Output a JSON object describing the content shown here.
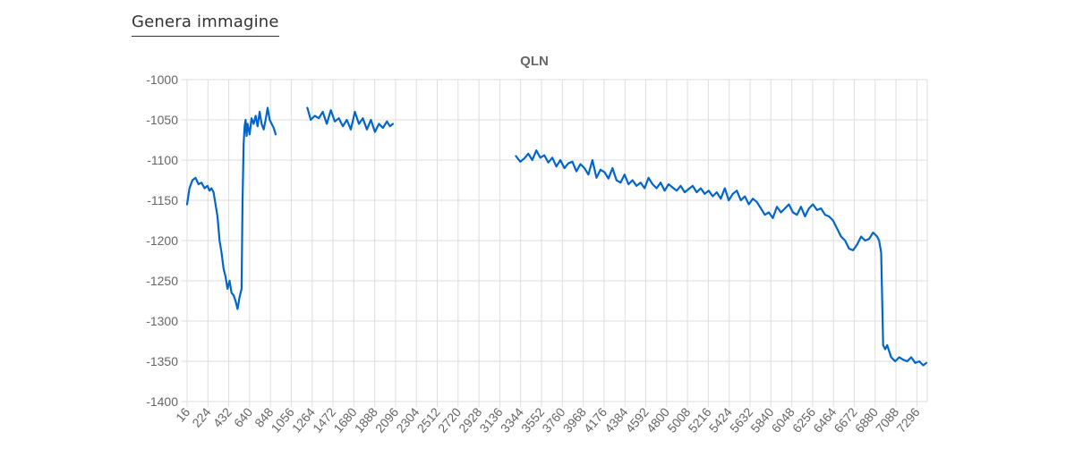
{
  "button": {
    "label": "Genera immagine"
  },
  "chart_data": {
    "type": "line",
    "title": "QLN",
    "xlabel": "",
    "ylabel": "",
    "ylim": [
      -1400,
      -1000
    ],
    "xlim": [
      16,
      7400
    ],
    "grid": true,
    "legend": "none",
    "line_color": "#0066CC",
    "y_ticks": [
      "-1000",
      "-1050",
      "-1100",
      "-1150",
      "-1200",
      "-1250",
      "-1300",
      "-1350",
      "-1400"
    ],
    "x_ticks": [
      "16",
      "224",
      "432",
      "640",
      "848",
      "1056",
      "1264",
      "1472",
      "1680",
      "1888",
      "2096",
      "2304",
      "2512",
      "2720",
      "2928",
      "3136",
      "3344",
      "3552",
      "3760",
      "3968",
      "4176",
      "4384",
      "4592",
      "4800",
      "5008",
      "5216",
      "5424",
      "5632",
      "5840",
      "6048",
      "6256",
      "6464",
      "6672",
      "6880",
      "7088",
      "7296"
    ],
    "series": [
      {
        "segments": [
          [
            [
              16,
              -1155
            ],
            [
              40,
              -1135
            ],
            [
              70,
              -1125
            ],
            [
              100,
              -1122
            ],
            [
              130,
              -1130
            ],
            [
              160,
              -1128
            ],
            [
              190,
              -1135
            ],
            [
              220,
              -1132
            ],
            [
              240,
              -1138
            ],
            [
              260,
              -1135
            ],
            [
              280,
              -1140
            ],
            [
              300,
              -1155
            ],
            [
              320,
              -1170
            ],
            [
              340,
              -1200
            ],
            [
              360,
              -1215
            ],
            [
              380,
              -1235
            ],
            [
              400,
              -1245
            ],
            [
              420,
              -1260
            ],
            [
              440,
              -1250
            ],
            [
              460,
              -1265
            ],
            [
              480,
              -1268
            ],
            [
              500,
              -1275
            ],
            [
              520,
              -1285
            ],
            [
              540,
              -1270
            ],
            [
              560,
              -1260
            ],
            [
              570,
              -1150
            ],
            [
              580,
              -1080
            ],
            [
              590,
              -1058
            ],
            [
              600,
              -1050
            ],
            [
              610,
              -1070
            ],
            [
              620,
              -1055
            ],
            [
              640,
              -1068
            ],
            [
              660,
              -1048
            ],
            [
              680,
              -1055
            ],
            [
              700,
              -1045
            ],
            [
              720,
              -1058
            ],
            [
              740,
              -1040
            ],
            [
              760,
              -1055
            ],
            [
              780,
              -1062
            ],
            [
              800,
              -1050
            ],
            [
              820,
              -1035
            ],
            [
              840,
              -1050
            ],
            [
              860,
              -1055
            ],
            [
              880,
              -1060
            ],
            [
              900,
              -1068
            ]
          ],
          [
            [
              1216,
              -1035
            ],
            [
              1250,
              -1050
            ],
            [
              1290,
              -1045
            ],
            [
              1330,
              -1048
            ],
            [
              1370,
              -1040
            ],
            [
              1410,
              -1055
            ],
            [
              1450,
              -1038
            ],
            [
              1490,
              -1052
            ],
            [
              1530,
              -1048
            ],
            [
              1570,
              -1058
            ],
            [
              1610,
              -1050
            ],
            [
              1650,
              -1062
            ],
            [
              1690,
              -1040
            ],
            [
              1730,
              -1055
            ],
            [
              1770,
              -1048
            ],
            [
              1810,
              -1062
            ],
            [
              1850,
              -1050
            ],
            [
              1890,
              -1065
            ],
            [
              1930,
              -1055
            ],
            [
              1970,
              -1060
            ],
            [
              2010,
              -1052
            ],
            [
              2040,
              -1058
            ],
            [
              2070,
              -1055
            ]
          ],
          [
            [
              3296,
              -1095
            ],
            [
              3340,
              -1102
            ],
            [
              3380,
              -1098
            ],
            [
              3420,
              -1092
            ],
            [
              3460,
              -1100
            ],
            [
              3500,
              -1088
            ],
            [
              3540,
              -1097
            ],
            [
              3580,
              -1094
            ],
            [
              3620,
              -1103
            ],
            [
              3660,
              -1097
            ],
            [
              3700,
              -1108
            ],
            [
              3740,
              -1100
            ],
            [
              3780,
              -1110
            ],
            [
              3820,
              -1104
            ],
            [
              3860,
              -1102
            ],
            [
              3900,
              -1114
            ],
            [
              3940,
              -1105
            ],
            [
              3980,
              -1110
            ],
            [
              4020,
              -1118
            ],
            [
              4060,
              -1100
            ],
            [
              4100,
              -1122
            ],
            [
              4140,
              -1112
            ],
            [
              4180,
              -1115
            ],
            [
              4220,
              -1123
            ],
            [
              4260,
              -1110
            ],
            [
              4300,
              -1125
            ],
            [
              4340,
              -1128
            ],
            [
              4380,
              -1118
            ],
            [
              4420,
              -1130
            ],
            [
              4460,
              -1125
            ],
            [
              4500,
              -1132
            ],
            [
              4540,
              -1128
            ],
            [
              4580,
              -1135
            ],
            [
              4620,
              -1122
            ],
            [
              4660,
              -1130
            ],
            [
              4700,
              -1135
            ],
            [
              4740,
              -1128
            ],
            [
              4780,
              -1138
            ],
            [
              4820,
              -1130
            ],
            [
              4860,
              -1134
            ],
            [
              4900,
              -1138
            ],
            [
              4940,
              -1132
            ],
            [
              4980,
              -1140
            ],
            [
              5020,
              -1136
            ],
            [
              5060,
              -1132
            ],
            [
              5100,
              -1140
            ],
            [
              5140,
              -1135
            ],
            [
              5180,
              -1142
            ],
            [
              5220,
              -1138
            ],
            [
              5260,
              -1145
            ],
            [
              5300,
              -1140
            ],
            [
              5340,
              -1148
            ],
            [
              5380,
              -1135
            ],
            [
              5420,
              -1150
            ],
            [
              5460,
              -1142
            ],
            [
              5500,
              -1138
            ],
            [
              5540,
              -1150
            ],
            [
              5580,
              -1145
            ],
            [
              5620,
              -1155
            ],
            [
              5660,
              -1148
            ],
            [
              5700,
              -1152
            ],
            [
              5740,
              -1160
            ],
            [
              5780,
              -1168
            ],
            [
              5820,
              -1165
            ],
            [
              5860,
              -1172
            ],
            [
              5900,
              -1158
            ],
            [
              5940,
              -1165
            ],
            [
              5980,
              -1160
            ],
            [
              6020,
              -1155
            ],
            [
              6060,
              -1165
            ],
            [
              6100,
              -1168
            ],
            [
              6140,
              -1158
            ],
            [
              6180,
              -1170
            ],
            [
              6220,
              -1160
            ],
            [
              6260,
              -1155
            ],
            [
              6300,
              -1162
            ],
            [
              6340,
              -1160
            ],
            [
              6380,
              -1168
            ],
            [
              6420,
              -1170
            ],
            [
              6460,
              -1175
            ],
            [
              6500,
              -1185
            ],
            [
              6540,
              -1195
            ],
            [
              6580,
              -1200
            ],
            [
              6620,
              -1210
            ],
            [
              6660,
              -1212
            ],
            [
              6700,
              -1205
            ],
            [
              6740,
              -1195
            ],
            [
              6780,
              -1200
            ],
            [
              6820,
              -1198
            ],
            [
              6860,
              -1190
            ],
            [
              6900,
              -1195
            ],
            [
              6920,
              -1200
            ],
            [
              6940,
              -1215
            ],
            [
              6960,
              -1330
            ],
            [
              6980,
              -1335
            ],
            [
              7000,
              -1330
            ],
            [
              7040,
              -1345
            ],
            [
              7080,
              -1350
            ],
            [
              7120,
              -1345
            ],
            [
              7160,
              -1348
            ],
            [
              7200,
              -1350
            ],
            [
              7240,
              -1345
            ],
            [
              7280,
              -1352
            ],
            [
              7320,
              -1350
            ],
            [
              7360,
              -1355
            ],
            [
              7390,
              -1352
            ]
          ]
        ]
      }
    ]
  }
}
